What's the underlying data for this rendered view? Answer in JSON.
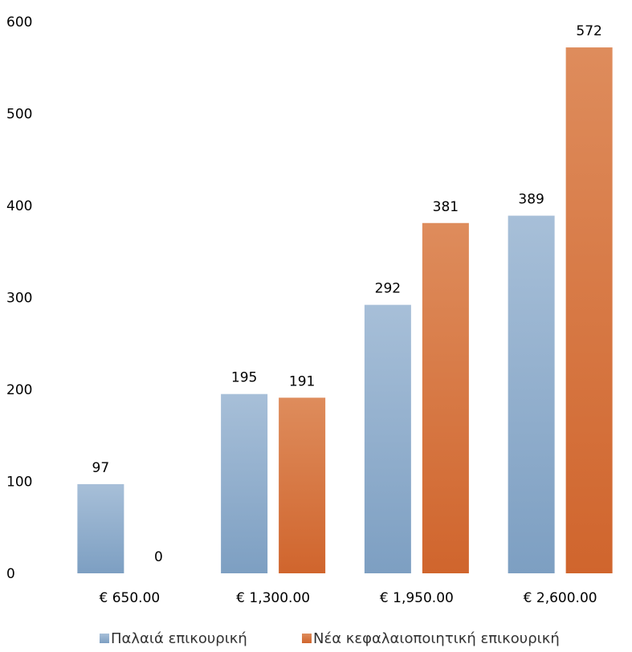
{
  "chart_data": {
    "type": "bar",
    "categories": [
      "€ 650.00",
      "€ 1,300.00",
      "€ 1,950.00",
      "€ 2,600.00"
    ],
    "series": [
      {
        "name": "Παλαιά επικουρική",
        "values": [
          97,
          195,
          292,
          389
        ],
        "labels": [
          "97",
          "195",
          "292",
          "389"
        ],
        "color_top": "#a7bfd8",
        "color_bottom": "#7d9fc2"
      },
      {
        "name": "Νέα κεφαλαιοποιητική επικουρική",
        "values": [
          0,
          191,
          381,
          572
        ],
        "labels": [
          "0",
          "191",
          "381",
          "572"
        ],
        "color_top": "#de8c5c",
        "color_bottom": "#d0652d"
      }
    ],
    "yticks": [
      "0",
      "100",
      "200",
      "300",
      "400",
      "500",
      "600"
    ],
    "ylim": [
      0,
      600
    ],
    "grid": false,
    "legend": "bottom"
  }
}
